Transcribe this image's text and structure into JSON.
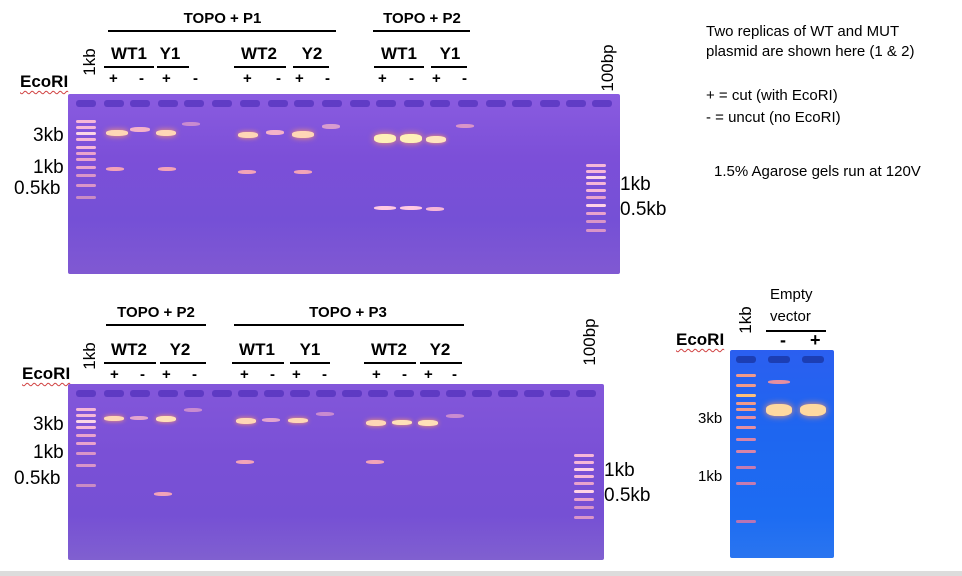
{
  "top_panel": {
    "group_headers": [
      "TOPO + P1",
      "TOPO + P2"
    ],
    "lane_labels": [
      "WT1",
      "Y1",
      "WT2",
      "Y2",
      "WT1",
      "Y1"
    ],
    "enzyme_label": "EcoRI",
    "ladder_left_label": "1kb",
    "ladder_right_label": "100bp",
    "left_sizes": [
      "3kb",
      "1kb",
      "0.5kb"
    ],
    "right_sizes": [
      "1kb",
      "0.5kb"
    ],
    "signs": [
      "+",
      "-",
      "+",
      "-",
      "+",
      "-",
      "+",
      "-",
      "+",
      "-",
      "+",
      "-"
    ]
  },
  "bottom_panel": {
    "group_headers": [
      "TOPO + P2",
      "TOPO + P3"
    ],
    "lane_labels": [
      "WT2",
      "Y2",
      "WT1",
      "Y1",
      "WT2",
      "Y2"
    ],
    "enzyme_label": "EcoRI",
    "ladder_left_label": "1kb",
    "ladder_right_label": "100bp",
    "left_sizes": [
      "3kb",
      "1kb",
      "0.5kb"
    ],
    "right_sizes": [
      "1kb",
      "0.5kb"
    ],
    "signs": [
      "+",
      "-",
      "+",
      "-",
      "+",
      "-",
      "+",
      "-",
      "+",
      "-",
      "+",
      "-"
    ]
  },
  "right_panel": {
    "title_line1": "Empty",
    "title_line2": "vector",
    "enzyme_label": "EcoRI",
    "ladder_label": "1kb",
    "signs": [
      "-",
      "+"
    ],
    "sizes": [
      "3kb",
      "1kb"
    ]
  },
  "notes": {
    "line1": "Two replicas of WT and MUT",
    "line2": "plasmid are shown here (1 & 2)",
    "legend_plus": "+ = cut (with EcoRI)",
    "legend_minus": "- = uncut (no EcoRI)",
    "conditions": "1.5% Agarose gels run at 120V"
  },
  "colors": {
    "gel_purple": "#7f52d6",
    "gel_blue": "#1e66f0",
    "band": "#ffe9b0",
    "band_glow": "#ff9a6a"
  }
}
